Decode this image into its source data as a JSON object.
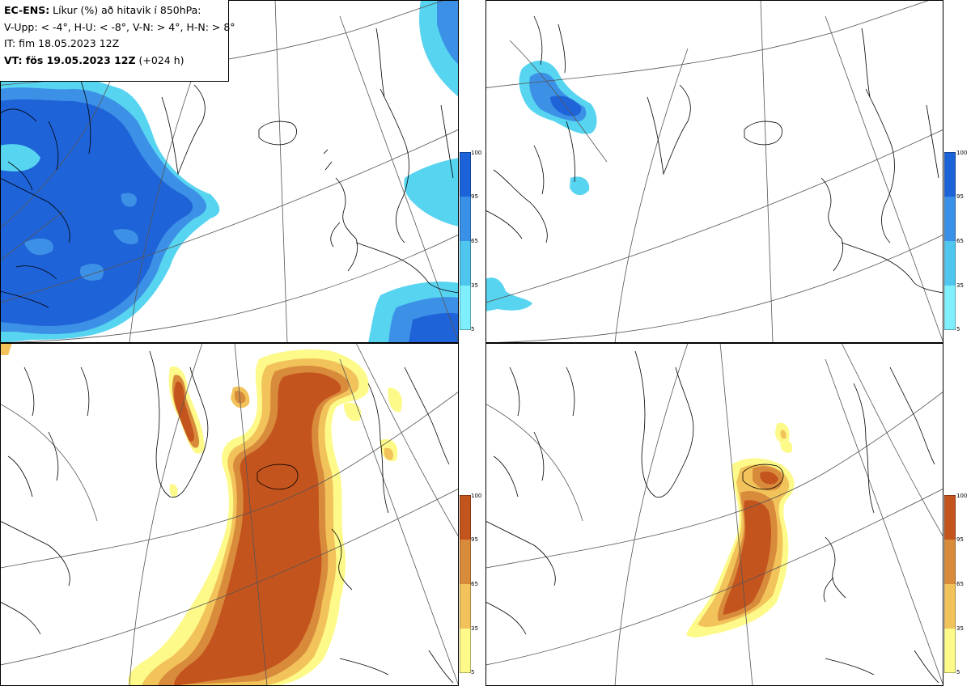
{
  "title_block": {
    "line1_bold": "EC-ENS:",
    "line1_rest": " Líkur (%) að hitavik í 850hPa:",
    "line2": "V-Upp: < -4°, H-U: < -8°, V-N: > 4°, H-N: > 8°",
    "line3": "IT: fim 18.05.2023 12Z",
    "line4_bold": "VT: fös 19.05.2023 12Z",
    "line4_rest": " (+024 h)"
  },
  "colorbar": {
    "ticks": [
      "100",
      "95",
      "65",
      "35",
      "5"
    ],
    "cold_colors": [
      "#1c62d8",
      "#3a8fe6",
      "#4fc6ee",
      "#7ff0fb"
    ],
    "warm_colors": [
      "#c4541e",
      "#d98b3c",
      "#f2c35a",
      "#fdfa8a"
    ]
  },
  "colors": {
    "cold_high": "#1f63d8",
    "cold_mid": "#3c91e6",
    "cold_low": "#57d4f0",
    "cold_edge": "#8bf5fb",
    "warm_high": "#c4541e",
    "warm_mid": "#d98b3c",
    "warm_low": "#f2c35a",
    "warm_edge": "#fdfa8a"
  },
  "panels": [
    {
      "id": "upper-left",
      "field": "cold_lt_-4"
    },
    {
      "id": "upper-right",
      "field": "cold_lt_-8"
    },
    {
      "id": "lower-left",
      "field": "warm_gt_4"
    },
    {
      "id": "lower-right",
      "field": "warm_gt_8"
    }
  ]
}
